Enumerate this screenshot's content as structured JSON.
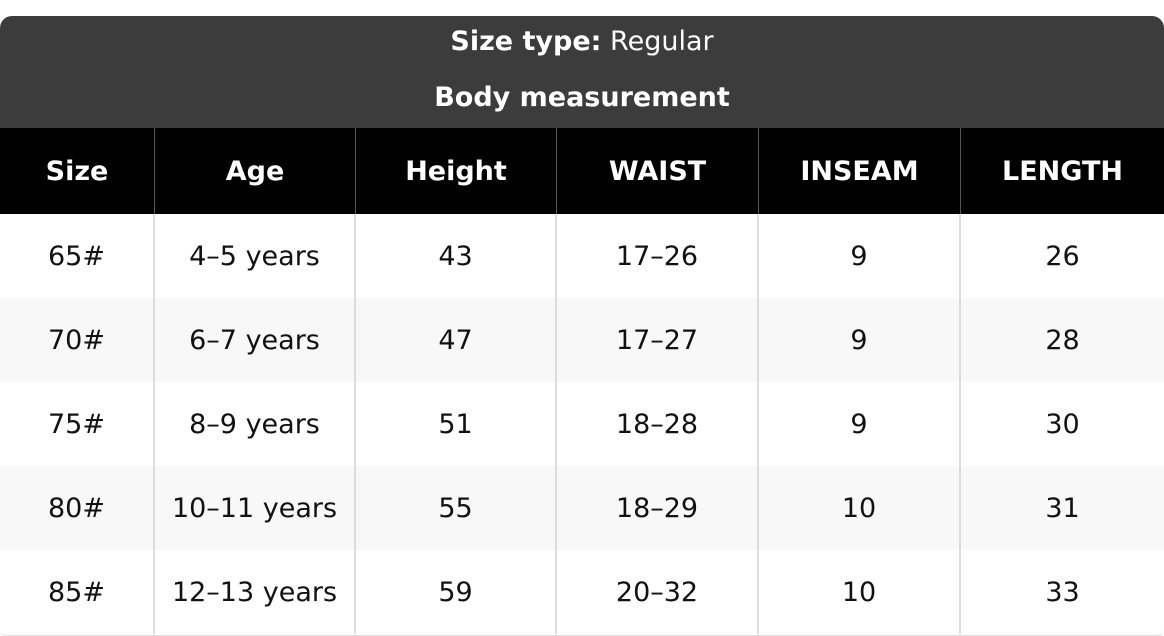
{
  "header": {
    "size_type_label": "Size type:",
    "size_type_value": "Regular",
    "title": "Body measurement"
  },
  "table": {
    "columns": [
      "Size",
      "Age",
      "Height",
      "WAIST",
      "INSEAM",
      "LENGTH"
    ],
    "rows": [
      [
        "65#",
        "4–5 years",
        "43",
        "17–26",
        "9",
        "26"
      ],
      [
        "70#",
        "6–7 years",
        "47",
        "17–27",
        "9",
        "28"
      ],
      [
        "75#",
        "8–9 years",
        "51",
        "18–28",
        "9",
        "30"
      ],
      [
        "80#",
        "10–11 years",
        "55",
        "18–29",
        "10",
        "31"
      ],
      [
        "85#",
        "12–13 years",
        "59",
        "20–32",
        "10",
        "33"
      ]
    ]
  }
}
